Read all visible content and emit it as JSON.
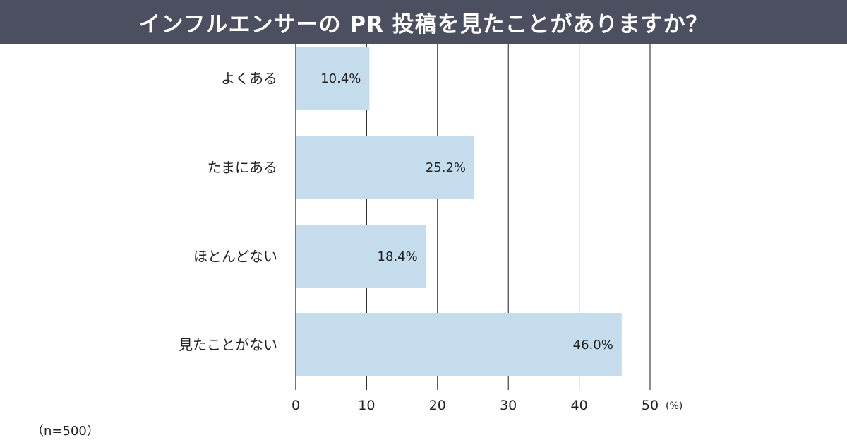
{
  "chart_data": {
    "type": "bar",
    "orientation": "horizontal",
    "title": "インフルエンサーの PR 投稿を見たことがありますか？",
    "categories": [
      "よくある",
      "たまにある",
      "ほとんどない",
      "見たことがない"
    ],
    "values": [
      10.4,
      25.2,
      18.4,
      46.0
    ],
    "value_labels": [
      "10.4%",
      "25.2%",
      "18.4%",
      "46.0%"
    ],
    "xlim": [
      0,
      50
    ],
    "xticks": [
      0,
      10,
      20,
      30,
      40,
      50
    ],
    "tick_labels": [
      "0",
      "10",
      "20",
      "30",
      "40",
      "50"
    ],
    "unit": "(%)",
    "grid": true,
    "bar_color": "#c5dced",
    "note": "（n=500）"
  }
}
